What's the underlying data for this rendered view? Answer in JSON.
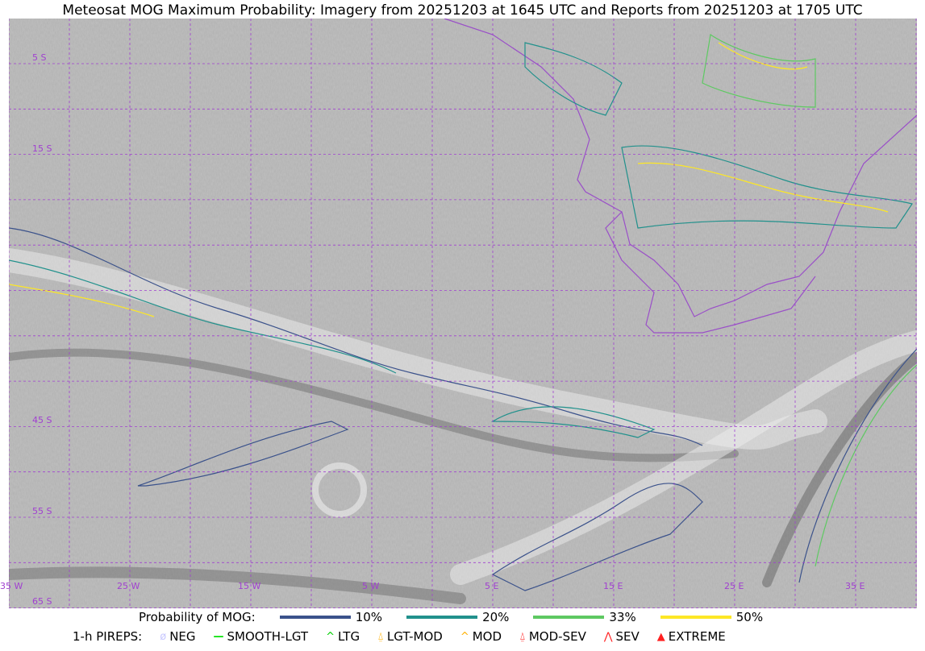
{
  "title": "Meteosat MOG Maximum Probability: Imagery from 20251203 at 1645 UTC and Reports from 20251203 at 1705 UTC",
  "map": {
    "lon_labels": [
      "35 W",
      "25 W",
      "15 W",
      "5 W",
      "5 E",
      "15 E",
      "25 E",
      "35 E"
    ],
    "lat_labels": [
      "5 S",
      "15 S",
      "45 S",
      "55 S",
      "65 S"
    ],
    "grid_color": "#a040d0",
    "coastline_color": "#9a4fc8"
  },
  "legend": {
    "mog_title": "Probability of MOG:",
    "mog_levels": [
      {
        "label": "10%",
        "color": "#3b528b"
      },
      {
        "label": "20%",
        "color": "#21918c"
      },
      {
        "label": "33%",
        "color": "#5ec962"
      },
      {
        "label": "50%",
        "color": "#fde725"
      }
    ],
    "pirep_title": "1-h PIREPS:",
    "pireps": [
      {
        "label": "NEG",
        "icon": "slashed-circle-icon",
        "color": "#c8c8ff"
      },
      {
        "label": "SMOOTH-LGT",
        "icon": "dash-icon",
        "color": "#00e000"
      },
      {
        "label": "LTG",
        "icon": "caret-icon",
        "color": "#00d000"
      },
      {
        "label": "LGT-MOD",
        "icon": "caret-bar-icon",
        "color": "#ffb000"
      },
      {
        "label": "MOD",
        "icon": "caret-icon",
        "color": "#ffb000"
      },
      {
        "label": "MOD-SEV",
        "icon": "double-caret-bar-icon",
        "color": "#ff2020"
      },
      {
        "label": "SEV",
        "icon": "double-caret-icon",
        "color": "#ff2020"
      },
      {
        "label": "EXTREME",
        "icon": "filled-triangle-icon",
        "color": "#ff2020"
      }
    ]
  }
}
